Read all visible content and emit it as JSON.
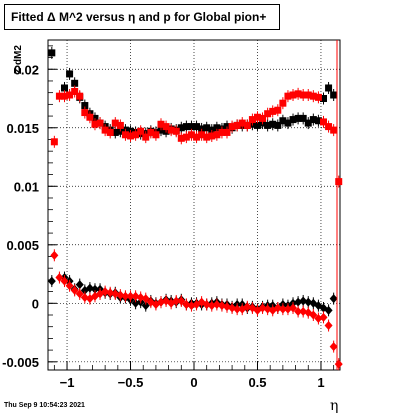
{
  "title": "Fitted Δ M^2 versus η and p for Global pion+",
  "timestamp": "Thu Sep  9 10:54:23 2021",
  "chart_data": {
    "type": "scatter",
    "xlabel": "η",
    "ylabel": "Z dM2",
    "xlim": [
      -1.15,
      1.15
    ],
    "ylim": [
      -0.0057,
      0.0225
    ],
    "grid": true,
    "x_ticks": [
      -1,
      -0.5,
      0,
      0.5,
      1
    ],
    "x_tick_labels": [
      "−1",
      "−0.5",
      "0",
      "0.5",
      "1"
    ],
    "y_ticks": [
      -0.005,
      0,
      0.005,
      0.01,
      0.015,
      0.02
    ],
    "y_tick_labels": [
      "-0.005",
      "0",
      "0.005",
      "0.01",
      "0.015",
      "0.02"
    ],
    "series": [
      {
        "color": "#000000",
        "x": [
          -1.12,
          -1.02,
          -0.98,
          -0.94,
          -0.9,
          -0.86,
          -0.82,
          -0.78,
          -0.74,
          -0.7,
          -0.66,
          -0.62,
          -0.58,
          -0.54,
          -0.5,
          -0.46,
          -0.42,
          -0.38,
          -0.34,
          -0.3,
          -0.26,
          -0.22,
          -0.18,
          -0.14,
          -0.1,
          -0.06,
          -0.02,
          0.02,
          0.06,
          0.1,
          0.14,
          0.18,
          0.22,
          0.26,
          0.3,
          0.34,
          0.38,
          0.42,
          0.46,
          0.5,
          0.54,
          0.58,
          0.62,
          0.66,
          0.7,
          0.74,
          0.78,
          0.82,
          0.86,
          0.9,
          0.94,
          0.98,
          1.02,
          1.06,
          1.1
        ],
        "upper_y": [
          0.0214,
          0.0184,
          0.0196,
          0.0188,
          0.0176,
          0.0169,
          0.0162,
          0.0158,
          0.0154,
          0.0151,
          0.0148,
          0.0146,
          0.0147,
          0.0148,
          0.0147,
          0.0146,
          0.0145,
          0.0145,
          0.0147,
          0.0146,
          0.0148,
          0.0147,
          0.0149,
          0.0148,
          0.015,
          0.0151,
          0.0151,
          0.0151,
          0.0149,
          0.015,
          0.0148,
          0.015,
          0.0149,
          0.0151,
          0.015,
          0.0152,
          0.0152,
          0.0152,
          0.0153,
          0.0152,
          0.0154,
          0.0152,
          0.0153,
          0.0152,
          0.0156,
          0.0154,
          0.0157,
          0.0158,
          0.0158,
          0.0154,
          0.0157,
          0.0156,
          0.0175,
          0.0184,
          0.0178
        ],
        "lower_y": [
          0.0019,
          0.0022,
          0.0019,
          0.0012,
          0.0016,
          0.0011,
          0.0013,
          0.0012,
          0.0012,
          0.0009,
          0.0008,
          0.0009,
          0.0005,
          0.0005,
          0.0003,
          0.0,
          0.0001,
          -0.0002,
          0.0002,
          0.0,
          0.0001,
          0.0003,
          0.0002,
          0.0001,
          0.0003,
          -0.0001,
          0.0,
          0.0,
          -0.0001,
          -0.0001,
          0.0,
          0.0001,
          -0.0001,
          -0.0001,
          -0.0003,
          -0.0001,
          -0.0001,
          -0.0004,
          -0.0003,
          -0.0005,
          -0.0003,
          -0.0002,
          -0.0002,
          -0.0004,
          -0.0001,
          -0.0002,
          0.0,
          0.0001,
          0.0002,
          0.0001,
          0.0,
          -0.0002,
          -0.0004,
          -0.0006,
          0.0004
        ]
      },
      {
        "color": "#ff0000",
        "x": [
          -1.1,
          -1.06,
          -1.02,
          -0.98,
          -0.94,
          -0.9,
          -0.86,
          -0.82,
          -0.78,
          -0.74,
          -0.7,
          -0.66,
          -0.62,
          -0.58,
          -0.54,
          -0.5,
          -0.46,
          -0.42,
          -0.38,
          -0.34,
          -0.3,
          -0.26,
          -0.22,
          -0.18,
          -0.14,
          -0.1,
          -0.06,
          -0.02,
          0.02,
          0.06,
          0.1,
          0.14,
          0.18,
          0.22,
          0.26,
          0.3,
          0.34,
          0.38,
          0.42,
          0.46,
          0.5,
          0.54,
          0.58,
          0.62,
          0.66,
          0.7,
          0.74,
          0.78,
          0.82,
          0.86,
          0.9,
          0.94,
          0.98,
          1.02,
          1.06,
          1.1,
          1.14
        ],
        "upper_y": [
          0.0138,
          0.0177,
          0.0177,
          0.0178,
          0.0181,
          0.0177,
          0.0163,
          0.0159,
          0.0153,
          0.0154,
          0.0148,
          0.0146,
          0.0154,
          0.0152,
          0.0144,
          0.0143,
          0.0144,
          0.0147,
          0.0142,
          0.0146,
          0.0144,
          0.0153,
          0.0151,
          0.0148,
          0.0147,
          0.0141,
          0.0142,
          0.0144,
          0.0142,
          0.0144,
          0.0142,
          0.0143,
          0.0144,
          0.0146,
          0.0146,
          0.0151,
          0.0152,
          0.0154,
          0.0152,
          0.0157,
          0.0159,
          0.0158,
          0.0162,
          0.0164,
          0.0165,
          0.0171,
          0.0177,
          0.0178,
          0.0179,
          0.0178,
          0.0178,
          0.0177,
          0.0176,
          0.0155,
          0.0151,
          0.0148,
          0.0104
        ],
        "lower_y": [
          0.0041,
          0.0022,
          0.0019,
          0.0015,
          0.0011,
          0.0008,
          0.0005,
          0.0004,
          0.0006,
          0.0008,
          0.001,
          0.0009,
          0.0008,
          0.0007,
          0.0006,
          0.0006,
          0.0006,
          0.0005,
          0.0004,
          0.0001,
          -0.0001,
          0.0001,
          0.0002,
          0.0,
          0.0002,
          0.0002,
          -0.0001,
          -0.0002,
          -0.0001,
          0.0001,
          -0.0001,
          -0.0002,
          -0.0001,
          -0.0002,
          -0.0003,
          -0.0004,
          -0.0005,
          -0.0005,
          -0.0003,
          -0.0004,
          -0.0006,
          -0.0004,
          -0.0005,
          -0.0006,
          -0.0004,
          -0.0005,
          -0.0005,
          -0.0004,
          -0.0007,
          -0.0007,
          -0.0008,
          -0.001,
          -0.0013,
          -0.0012,
          -0.0019,
          -0.0037,
          -0.0052
        ]
      }
    ]
  }
}
